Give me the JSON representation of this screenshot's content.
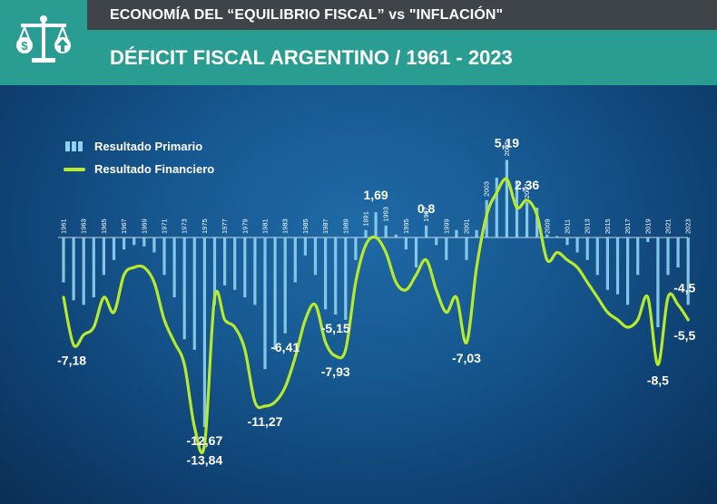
{
  "header": {
    "title": "ECONOMÍA DEL “EQUILIBRIO FISCAL” vs \"INFLACIÓN\"",
    "subtitle": "DÉFICIT FISCAL ARGENTINO / 1961 - 2023"
  },
  "logo": {
    "icon": "scale-of-justice-dollar-arrow-icon"
  },
  "colors": {
    "primary_bars": "#8fd3f2",
    "financial_line": "#b7ea2a",
    "header_dark": "#3f4449",
    "header_teal": "#2a9d93"
  },
  "chart_data": {
    "type": "bar",
    "title": "DÉFICIT FISCAL ARGENTINO / 1961 - 2023",
    "legend": [
      "Resultado Primario",
      "Resultado Financiero"
    ],
    "legend_position": "top-left",
    "x": [
      1961,
      1962,
      1963,
      1964,
      1965,
      1966,
      1967,
      1968,
      1969,
      1970,
      1971,
      1972,
      1973,
      1974,
      1975,
      1976,
      1977,
      1978,
      1979,
      1980,
      1981,
      1982,
      1983,
      1984,
      1985,
      1986,
      1987,
      1988,
      1989,
      1990,
      1991,
      1992,
      1993,
      1994,
      1995,
      1996,
      1997,
      1998,
      1999,
      2000,
      2001,
      2002,
      2003,
      2004,
      2005,
      2006,
      2007,
      2008,
      2009,
      2010,
      2011,
      2012,
      2013,
      2014,
      2015,
      2016,
      2017,
      2018,
      2019,
      2020,
      2021,
      2022,
      2023
    ],
    "tick_labels": [
      "1961",
      "1963",
      "1965",
      "1967",
      "1969",
      "1971",
      "1973",
      "1975",
      "1977",
      "1979",
      "1981",
      "1983",
      "1985",
      "1987",
      "1989",
      "1991",
      "1993",
      "1995",
      "1997",
      "1999",
      "2001",
      "2003",
      "2005",
      "2007",
      "2009",
      "2011",
      "2013",
      "2015",
      "2017",
      "2019",
      "2021",
      "2023"
    ],
    "series": [
      {
        "name": "Resultado Primario",
        "type": "bar",
        "values": [
          -3.0,
          -4.2,
          -4.5,
          -4.0,
          -2.5,
          -1.5,
          -0.8,
          -0.5,
          -0.6,
          -1.0,
          -2.5,
          -4.0,
          -6.8,
          -7.5,
          -12.67,
          -4.5,
          -3.2,
          -3.5,
          -4.0,
          -4.5,
          -8.8,
          -7.5,
          -6.41,
          -3.0,
          -1.2,
          -2.5,
          -4.8,
          -5.15,
          -5.5,
          -1.5,
          0.5,
          1.69,
          0.8,
          0.2,
          -0.8,
          -2.0,
          0.8,
          -0.5,
          -1.5,
          0.5,
          -1.5,
          0.5,
          2.5,
          4.0,
          5.19,
          3.8,
          2.36,
          2.0,
          0.2,
          0.1,
          -0.5,
          -1.0,
          -1.5,
          -2.5,
          -3.5,
          -3.8,
          -4.5,
          -2.5,
          -0.3,
          -6.0,
          -2.5,
          -2.0,
          -4.5
        ]
      },
      {
        "name": "Resultado Financiero",
        "type": "line",
        "values": [
          -4.0,
          -7.18,
          -6.5,
          -6.0,
          -4.0,
          -5.0,
          -2.5,
          -2.0,
          -2.0,
          -3.0,
          -5.5,
          -7.0,
          -8.5,
          -12.67,
          -13.84,
          -4.0,
          -5.5,
          -6.0,
          -7.5,
          -11.0,
          -11.27,
          -11.0,
          -10.0,
          -8.0,
          -5.5,
          -4.5,
          -7.0,
          -7.93,
          -7.5,
          -3.0,
          -0.5,
          0.0,
          -1.0,
          -3.0,
          -3.5,
          -2.5,
          -1.5,
          -3.5,
          -5.0,
          -4.0,
          -7.03,
          -2.0,
          1.5,
          3.0,
          3.9,
          2.0,
          2.5,
          1.5,
          -1.5,
          -1.0,
          -1.5,
          -2.0,
          -3.0,
          -4.0,
          -5.0,
          -5.5,
          -6.0,
          -5.5,
          -4.0,
          -8.5,
          -4.0,
          -4.5,
          -5.5
        ]
      }
    ],
    "data_labels": [
      {
        "year": 1962,
        "series": "Resultado Financiero",
        "text": "-7,18"
      },
      {
        "year": 1975,
        "series": "Resultado Primario",
        "text": "-12,67"
      },
      {
        "year": 1975,
        "series": "Resultado Financiero",
        "text": "-13,84"
      },
      {
        "year": 1981,
        "series": "Resultado Financiero",
        "text": "-11,27"
      },
      {
        "year": 1983,
        "series": "Resultado Primario",
        "text": "-6,41"
      },
      {
        "year": 1988,
        "series": "Resultado Primario",
        "text": "-5,15"
      },
      {
        "year": 1988,
        "series": "Resultado Financiero",
        "text": "-7,93"
      },
      {
        "year": 1992,
        "series": "Resultado Primario",
        "text": "1,69"
      },
      {
        "year": 1997,
        "series": "Resultado Primario",
        "text": "0,8"
      },
      {
        "year": 2001,
        "series": "Resultado Financiero",
        "text": "-7,03"
      },
      {
        "year": 2005,
        "series": "Resultado Primario",
        "text": "5,19"
      },
      {
        "year": 2007,
        "series": "Resultado Primario",
        "text": "2,36"
      },
      {
        "year": 2020,
        "series": "Resultado Financiero",
        "text": "-8,5"
      },
      {
        "year": 2023,
        "series": "Resultado Primario",
        "text": "-4,5"
      },
      {
        "year": 2023,
        "series": "Resultado Financiero",
        "text": "-5,5"
      }
    ],
    "grid": false
  }
}
